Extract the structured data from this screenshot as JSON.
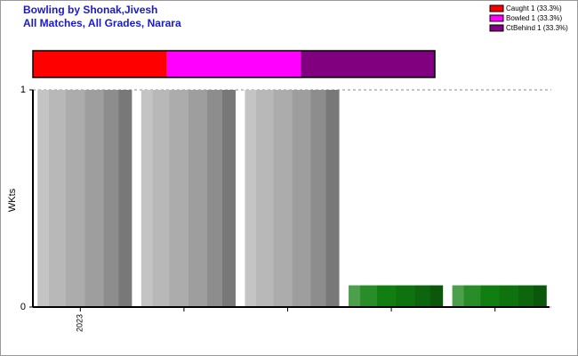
{
  "chart_data": {
    "type": "bar",
    "title": "Bowling by Shonak,Jivesh",
    "subtitle": "All Matches, All Grades, Narara",
    "y_label": "WKts",
    "categories": [
      "2023",
      null,
      null,
      null,
      null
    ],
    "values": [
      1,
      1,
      1,
      0.1,
      0.1
    ],
    "colors": [
      "#b0b0b0",
      "#b0b0b0",
      "#b0b0b0",
      "#108010",
      "#108010"
    ],
    "ylim": [
      0,
      1
    ],
    "yticks": [
      0,
      1
    ],
    "grid": true,
    "breakdown": [
      {
        "name": "Caught 1 (33.3%)",
        "color": "#ff0000",
        "value": 1
      },
      {
        "name": "Bowled 1 (33.3%)",
        "color": "#ff00ff",
        "value": 1
      },
      {
        "name": "CtBehind 1 (33.3%)",
        "color": "#800080",
        "value": 1
      }
    ]
  }
}
